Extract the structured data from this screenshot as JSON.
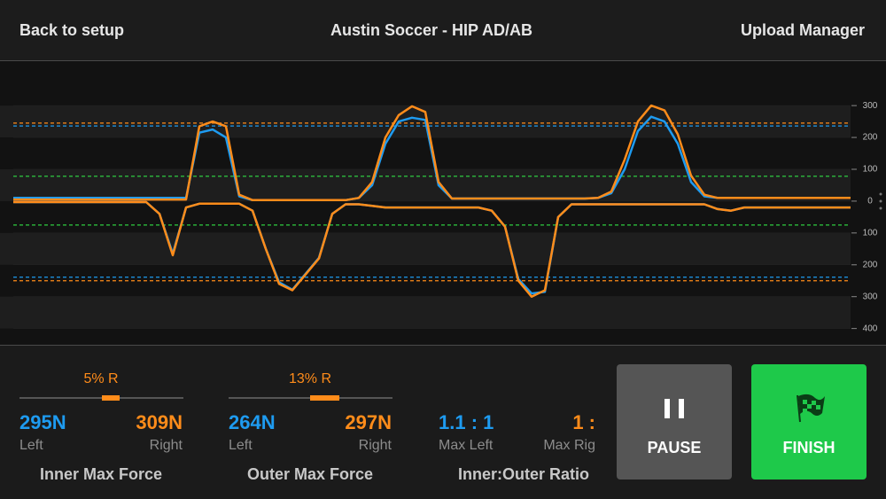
{
  "header": {
    "back": "Back to setup",
    "title": "Austin Soccer - HIP AD/AB",
    "upload": "Upload Manager"
  },
  "chart_data": {
    "type": "line",
    "ylim": [
      -440,
      395
    ],
    "yticks": [
      300,
      200,
      100,
      0,
      {
        "value": -100,
        "label": "100"
      },
      {
        "value": -200,
        "label": "200"
      },
      {
        "value": -300,
        "label": "300"
      },
      {
        "value": -400,
        "label": "400"
      }
    ],
    "grid": true,
    "reference_lines": [
      {
        "value": 245,
        "color": "#ff8c1a"
      },
      {
        "value": 236,
        "color": "#1e9bf0"
      },
      {
        "value": 78,
        "color": "#2ecc40"
      },
      {
        "value": -75,
        "color": "#2ecc40"
      },
      {
        "value": -239,
        "color": "#1e9bf0"
      },
      {
        "value": -250,
        "color": "#ff8c1a"
      }
    ],
    "series": [
      {
        "color": "#1e9bf0",
        "values": [
          10,
          10,
          10,
          10,
          10,
          10,
          10,
          10,
          10,
          10,
          10,
          10,
          10,
          10,
          215,
          225,
          200,
          15,
          3,
          3,
          3,
          3,
          3,
          3,
          3,
          3,
          10,
          50,
          180,
          250,
          262,
          255,
          50,
          8,
          8,
          8,
          8,
          8,
          8,
          8,
          8,
          8,
          8,
          8,
          10,
          25,
          100,
          220,
          265,
          250,
          180,
          60,
          15,
          10,
          10,
          10,
          10,
          10,
          10,
          10,
          10,
          10,
          10,
          10
        ]
      },
      {
        "color": "#ff8c1a",
        "values": [
          5,
          5,
          5,
          5,
          5,
          5,
          5,
          5,
          5,
          5,
          5,
          5,
          5,
          5,
          235,
          250,
          235,
          20,
          3,
          3,
          3,
          3,
          3,
          3,
          3,
          3,
          10,
          60,
          200,
          270,
          298,
          280,
          60,
          8,
          8,
          8,
          8,
          8,
          8,
          8,
          8,
          8,
          8,
          8,
          10,
          30,
          130,
          250,
          300,
          285,
          210,
          80,
          20,
          10,
          10,
          10,
          10,
          10,
          10,
          10,
          10,
          10,
          10,
          10
        ]
      },
      {
        "color": "#1e9bf0",
        "values": [
          -3,
          -3,
          -3,
          -3,
          -3,
          -3,
          -3,
          -3,
          -3,
          -3,
          -3,
          -40,
          -165,
          -20,
          -8,
          -8,
          -8,
          -8,
          -30,
          -150,
          -255,
          -278,
          -228,
          -178,
          -40,
          -10,
          -10,
          -15,
          -20,
          -20,
          -20,
          -20,
          -20,
          -20,
          -20,
          -20,
          -30,
          -80,
          -245,
          -290,
          -285,
          -50,
          -10,
          -10,
          -10,
          -10,
          -10,
          -10,
          -10,
          -10,
          -10,
          -10,
          -10,
          -25,
          -30,
          -20,
          -20,
          -20,
          -20,
          -20,
          -20,
          -20,
          -20,
          -20
        ]
      },
      {
        "color": "#ff8c1a",
        "values": [
          -3,
          -3,
          -3,
          -3,
          -3,
          -3,
          -3,
          -3,
          -3,
          -3,
          -3,
          -40,
          -170,
          -20,
          -8,
          -8,
          -8,
          -8,
          -30,
          -150,
          -260,
          -280,
          -230,
          -180,
          -40,
          -10,
          -10,
          -15,
          -20,
          -20,
          -20,
          -20,
          -20,
          -20,
          -20,
          -20,
          -30,
          -80,
          -250,
          -300,
          -280,
          -50,
          -10,
          -10,
          -10,
          -10,
          -10,
          -10,
          -10,
          -10,
          -10,
          -10,
          -10,
          -25,
          -30,
          -20,
          -20,
          -20,
          -20,
          -20,
          -20,
          -20,
          -20,
          -20
        ]
      }
    ]
  },
  "inner": {
    "balance": "5% R",
    "left_value": "295N",
    "right_value": "309N",
    "left": "Left",
    "right": "Right",
    "label": "Inner Max Force"
  },
  "outer": {
    "balance": "13% R",
    "left_value": "264N",
    "right_value": "297N",
    "left": "Left",
    "right": "Right",
    "label": "Outer Max Force"
  },
  "ratio": {
    "left_value": "1.1 : 1",
    "right_value": "1 :",
    "left": "Max Left",
    "right": "Max Rig",
    "label": "Inner:Outer Ratio"
  },
  "buttons": {
    "pause": "PAUSE",
    "finish": "FINISH"
  }
}
